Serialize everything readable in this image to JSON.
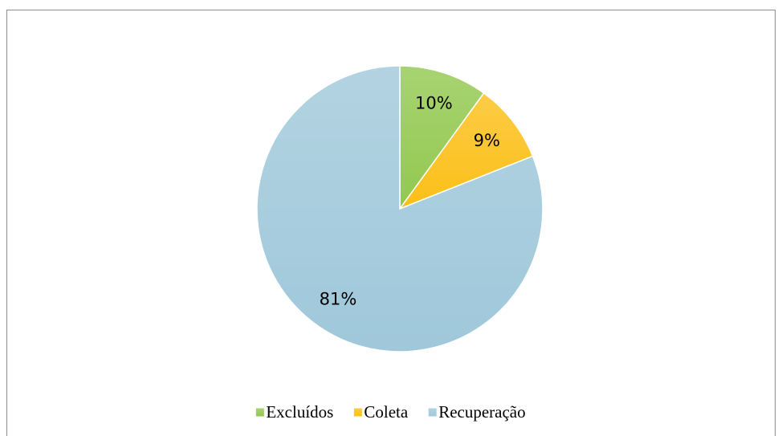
{
  "chart_data": {
    "type": "pie",
    "categories": [
      "Excluídos",
      "Coleta",
      "Recuperação"
    ],
    "values": [
      10,
      9,
      81
    ],
    "value_labels": [
      "10%",
      "9%",
      "81%"
    ],
    "series": [
      {
        "name": "Excluídos",
        "color": "#92c84f"
      },
      {
        "name": "Coleta",
        "color": "#fbbf17"
      },
      {
        "name": "Recuperação",
        "color": "#9fc8da"
      }
    ],
    "legend": "bottom"
  }
}
